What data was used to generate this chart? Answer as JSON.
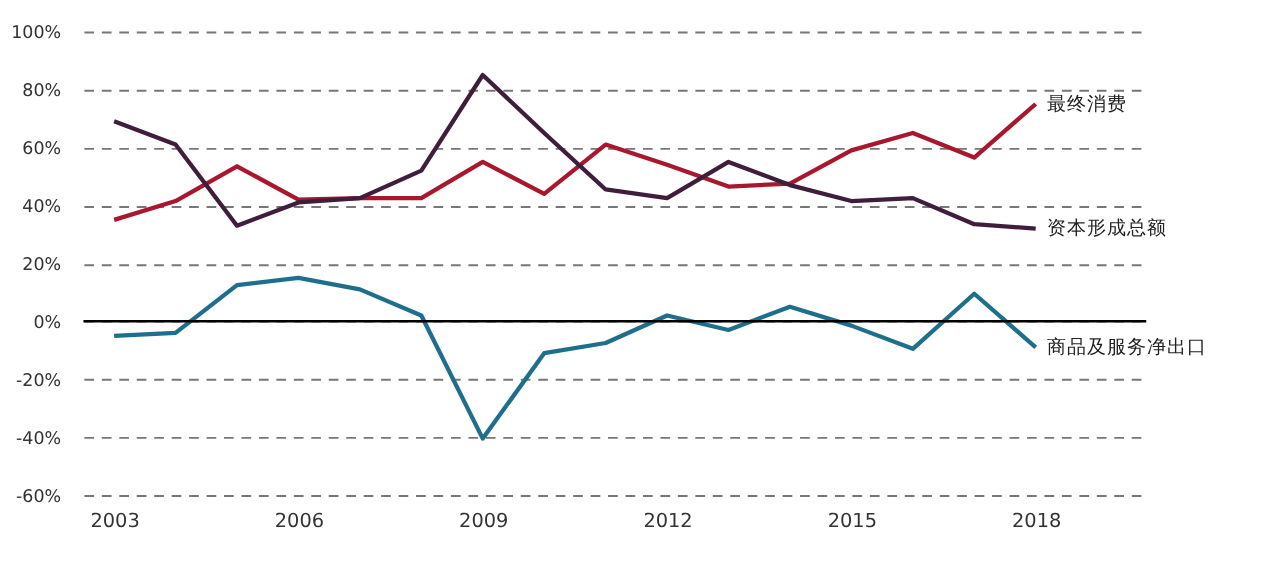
{
  "chart_data": {
    "type": "line",
    "x": [
      2003,
      2004,
      2005,
      2006,
      2007,
      2008,
      2009,
      2010,
      2011,
      2012,
      2013,
      2014,
      2015,
      2016,
      2017,
      2018
    ],
    "series": [
      {
        "name": "最终消费",
        "color": "#a8172e",
        "values": [
          35,
          41.5,
          53.5,
          42,
          42.5,
          42.5,
          55,
          44,
          61,
          54,
          46.5,
          47.5,
          59,
          65,
          56.5,
          75
        ]
      },
      {
        "name": "资本形成总额",
        "color": "#3f1e3c",
        "values": [
          69,
          61,
          33,
          41,
          42.5,
          52,
          85,
          65,
          45.5,
          42.5,
          55,
          47,
          41.5,
          42.5,
          33.5,
          32
        ]
      },
      {
        "name": "商品及服务净出口",
        "color": "#1d6f8d",
        "values": [
          -5,
          -4,
          12.5,
          15,
          11,
          2,
          -40.5,
          -11,
          -7.5,
          2,
          -3,
          5,
          -1.5,
          -9.5,
          9.5,
          -9
        ]
      }
    ],
    "xlim": [
      2002.5,
      2019.8
    ],
    "xticks": [
      2003,
      2006,
      2009,
      2012,
      2015,
      2018
    ],
    "ylim": [
      -60,
      100
    ],
    "yticks": [
      {
        "value": -60,
        "label": "-60%"
      },
      {
        "value": -40,
        "label": "-40%"
      },
      {
        "value": -20,
        "label": "-20%"
      },
      {
        "value": 0,
        "label": "0%"
      },
      {
        "value": 20,
        "label": "20%"
      },
      {
        "value": 40,
        "label": "40%"
      },
      {
        "value": 60,
        "label": "60%"
      },
      {
        "value": 80,
        "label": "80%"
      },
      {
        "value": 100,
        "label": "100%"
      }
    ],
    "grid": "y",
    "legend": false,
    "line_style": "solid",
    "marker": "none",
    "ref_lines": [
      {
        "axis": "y",
        "value": 0,
        "color": "#000000",
        "line_style": "solid"
      }
    ]
  }
}
